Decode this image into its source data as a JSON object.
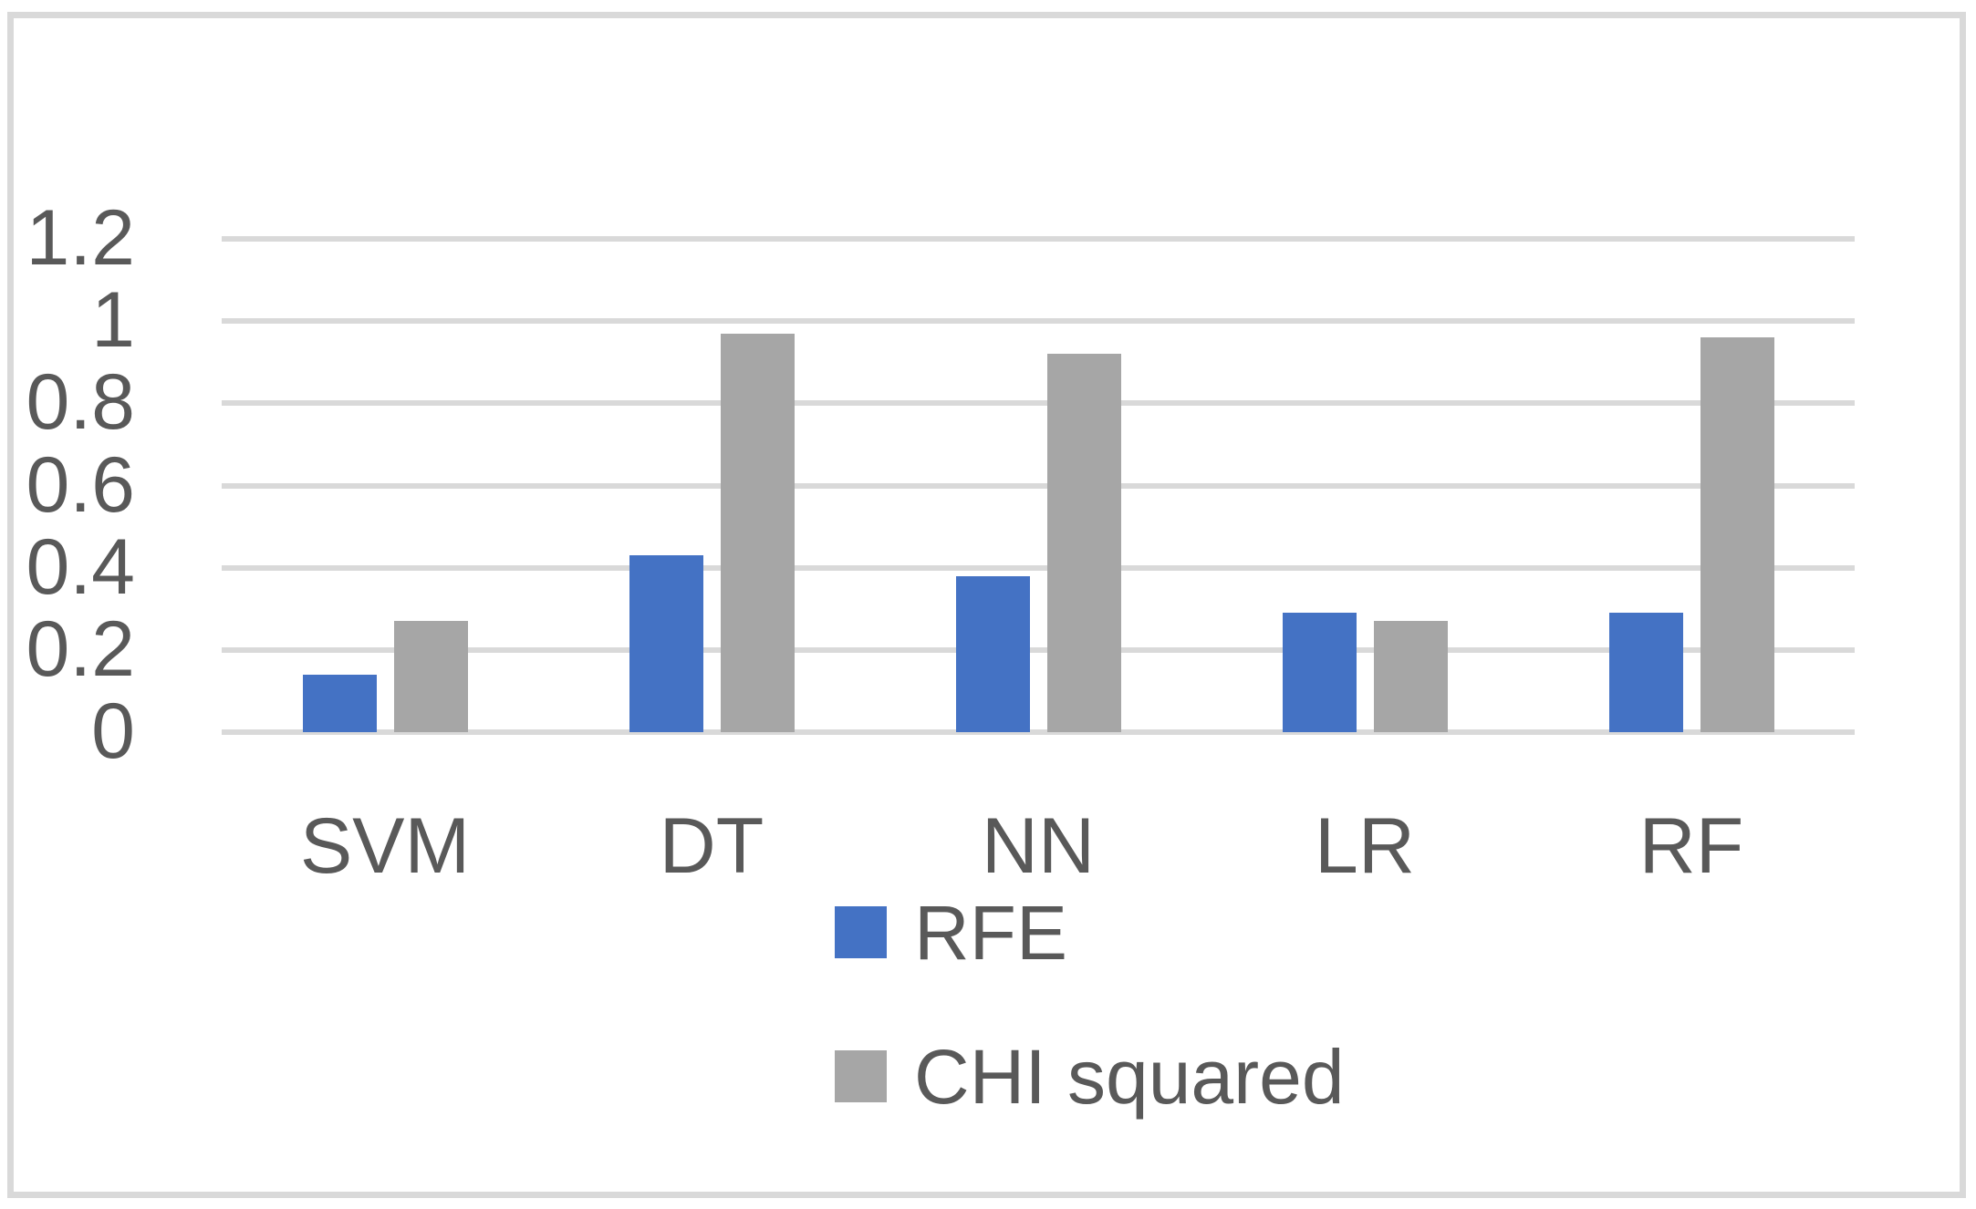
{
  "chart_data": {
    "type": "bar",
    "title": "",
    "xlabel": "",
    "ylabel": "",
    "categories": [
      "SVM",
      "DT",
      "NN",
      "LR",
      "RF"
    ],
    "series": [
      {
        "name": "RFE",
        "color": "#4472C4",
        "values": [
          0.14,
          0.43,
          0.38,
          0.29,
          0.29
        ]
      },
      {
        "name": "CHI squared",
        "color": "#A6A6A6",
        "values": [
          0.27,
          0.97,
          0.92,
          0.27,
          0.96
        ]
      }
    ],
    "ylim": [
      0,
      1.2
    ],
    "ytick_step": 0.2,
    "yticks_top_to_bottom": [
      "1.2",
      "1",
      "0.8",
      "0.6",
      "0.4",
      "0.2",
      "0"
    ],
    "grid": "horizontal",
    "legend_position": "bottom-center"
  },
  "styles": {
    "bar_blue": "#4472C4",
    "bar_gray": "#A6A6A6",
    "gridline_color": "#D9D9D9",
    "border_color": "#D9D9D9",
    "text_color": "#595959",
    "background": "#FFFFFF"
  }
}
